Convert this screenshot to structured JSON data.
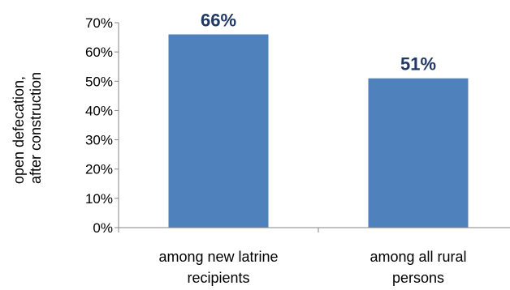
{
  "chart_data": {
    "type": "bar",
    "categories": [
      [
        "among new latrine",
        "recipients"
      ],
      [
        "among all rural",
        "persons"
      ]
    ],
    "values": [
      66,
      51
    ],
    "data_labels": [
      "66%",
      "51%"
    ],
    "yticks": [
      "0%",
      "10%",
      "20%",
      "30%",
      "40%",
      "50%",
      "60%",
      "70%"
    ],
    "ylim": [
      0,
      70
    ],
    "ylabel": [
      "open defecation,",
      "after construction"
    ],
    "title": "",
    "grid": false,
    "legend": "none",
    "colors": {
      "bar": "#4F81BD",
      "label": "#1F3864",
      "axis": "#868686"
    }
  }
}
